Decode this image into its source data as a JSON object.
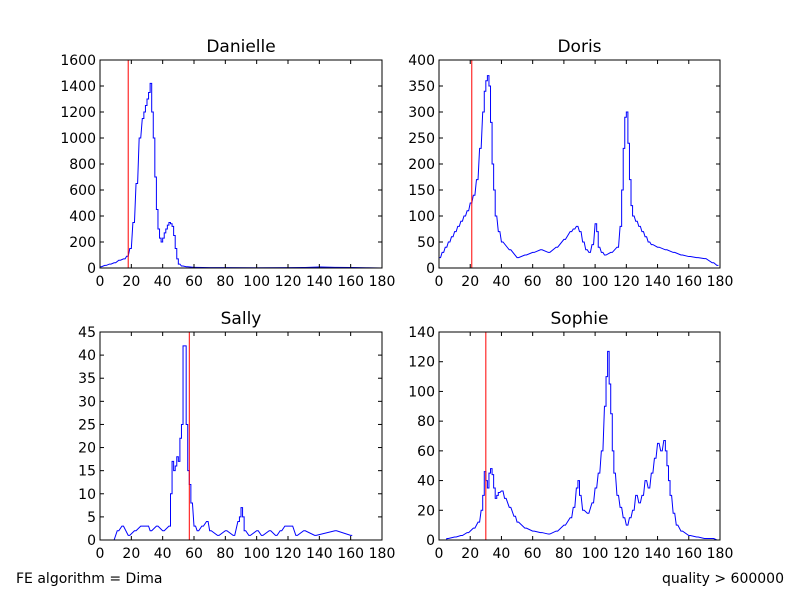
{
  "footer": {
    "left": "FE algorithm = Dima",
    "right": "quality > 600000"
  },
  "colors": {
    "series": "#0000ff",
    "marker": "#ff0000",
    "axes": "#000000"
  },
  "chart_data": [
    {
      "type": "histogram",
      "title": "Danielle",
      "xlim": [
        0,
        180
      ],
      "ylim": [
        0,
        1600
      ],
      "xticks": [
        0,
        20,
        40,
        60,
        80,
        100,
        120,
        140,
        160,
        180
      ],
      "yticks": [
        0,
        200,
        400,
        600,
        800,
        1000,
        1200,
        1400,
        1600
      ],
      "bin_width": 1,
      "threshold_x": 18,
      "series": [
        {
          "x": [
            0,
            3,
            6,
            9,
            12,
            15,
            17,
            19,
            21,
            23,
            25,
            27,
            28,
            29,
            30,
            31,
            32,
            33,
            34,
            35,
            36,
            37,
            38,
            39,
            40,
            41,
            42,
            43,
            44,
            45,
            46,
            47,
            48,
            49,
            50,
            52,
            55,
            60,
            70,
            80,
            100,
            120,
            130,
            140,
            150,
            160,
            170,
            180
          ],
          "values": [
            10,
            20,
            30,
            40,
            60,
            70,
            90,
            150,
            350,
            650,
            1000,
            1150,
            1200,
            1250,
            1300,
            1350,
            1420,
            1200,
            1000,
            700,
            450,
            300,
            230,
            200,
            230,
            270,
            300,
            330,
            350,
            340,
            320,
            250,
            150,
            70,
            30,
            15,
            10,
            5,
            3,
            3,
            2,
            3,
            4,
            8,
            5,
            4,
            2,
            0
          ]
        }
      ]
    },
    {
      "type": "histogram",
      "title": "Doris",
      "xlim": [
        0,
        180
      ],
      "ylim": [
        0,
        400
      ],
      "xticks": [
        0,
        20,
        40,
        60,
        80,
        100,
        120,
        140,
        160,
        180
      ],
      "yticks": [
        0,
        50,
        100,
        150,
        200,
        250,
        300,
        350,
        400
      ],
      "bin_width": 1,
      "threshold_x": 21,
      "series": [
        {
          "x": [
            0,
            2,
            4,
            6,
            8,
            10,
            12,
            14,
            16,
            18,
            20,
            22,
            24,
            26,
            28,
            29,
            30,
            31,
            32,
            33,
            34,
            35,
            36,
            38,
            40,
            45,
            50,
            55,
            60,
            65,
            70,
            75,
            80,
            84,
            86,
            88,
            90,
            92,
            94,
            96,
            98,
            100,
            101,
            102,
            104,
            106,
            110,
            114,
            116,
            117,
            118,
            119,
            120,
            121,
            122,
            123,
            124,
            126,
            128,
            130,
            132,
            134,
            136,
            140,
            145,
            150,
            155,
            160,
            165,
            170,
            175,
            178
          ],
          "values": [
            20,
            30,
            40,
            50,
            60,
            70,
            80,
            90,
            100,
            110,
            125,
            140,
            170,
            230,
            300,
            340,
            360,
            370,
            350,
            280,
            200,
            150,
            100,
            70,
            50,
            35,
            20,
            25,
            30,
            35,
            30,
            40,
            55,
            70,
            75,
            80,
            70,
            50,
            35,
            30,
            45,
            85,
            70,
            40,
            30,
            25,
            30,
            40,
            80,
            150,
            230,
            290,
            300,
            240,
            170,
            120,
            100,
            90,
            80,
            70,
            60,
            50,
            45,
            40,
            35,
            30,
            25,
            22,
            20,
            18,
            10,
            5
          ]
        }
      ]
    },
    {
      "type": "histogram",
      "title": "Sally",
      "xlim": [
        0,
        180
      ],
      "ylim": [
        0,
        45
      ],
      "xticks": [
        0,
        20,
        40,
        60,
        80,
        100,
        120,
        140,
        160,
        180
      ],
      "yticks": [
        0,
        5,
        10,
        15,
        20,
        25,
        30,
        35,
        40,
        45
      ],
      "bin_width": 1,
      "threshold_x": 57,
      "series": [
        {
          "x": [
            8,
            11,
            14,
            18,
            22,
            26,
            30,
            32,
            36,
            40,
            44,
            45,
            46,
            47,
            48,
            49,
            50,
            51,
            52,
            53,
            54,
            55,
            56,
            57,
            58,
            60,
            62,
            65,
            68,
            70,
            75,
            80,
            85,
            88,
            89,
            90,
            91,
            92,
            95,
            100,
            103,
            108,
            112,
            115,
            118,
            122,
            125,
            130,
            137,
            150,
            160
          ],
          "values": [
            0,
            2,
            3,
            1,
            2,
            3,
            3,
            2,
            3,
            2,
            3,
            10,
            17,
            15,
            16,
            18,
            17,
            22,
            25,
            42,
            42,
            25,
            15,
            12,
            8,
            3,
            2,
            3,
            4,
            2,
            1,
            2,
            1,
            4,
            5,
            7,
            5,
            2,
            1,
            2,
            1,
            2,
            1,
            2,
            3,
            3,
            1,
            2,
            1,
            2,
            1
          ]
        }
      ]
    },
    {
      "type": "histogram",
      "title": "Sophie",
      "xlim": [
        0,
        180
      ],
      "ylim": [
        0,
        140
      ],
      "xticks": [
        0,
        20,
        40,
        60,
        80,
        100,
        120,
        140,
        160,
        180
      ],
      "yticks": [
        0,
        20,
        40,
        60,
        80,
        100,
        120,
        140
      ],
      "bin_width": 1,
      "threshold_x": 30,
      "series": [
        {
          "x": [
            5,
            10,
            14,
            18,
            22,
            25,
            27,
            28,
            29,
            30,
            31,
            32,
            33,
            34,
            35,
            36,
            37,
            38,
            40,
            42,
            45,
            48,
            50,
            55,
            60,
            65,
            70,
            75,
            80,
            84,
            86,
            88,
            89,
            90,
            92,
            95,
            98,
            100,
            102,
            104,
            106,
            107,
            108,
            109,
            110,
            111,
            112,
            114,
            116,
            118,
            120,
            122,
            124,
            126,
            128,
            130,
            132,
            134,
            136,
            138,
            140,
            142,
            144,
            145,
            146,
            147,
            148,
            150,
            152,
            155,
            160,
            165,
            170,
            175,
            178
          ],
          "values": [
            1,
            2,
            3,
            5,
            8,
            12,
            20,
            30,
            46,
            40,
            35,
            45,
            48,
            44,
            35,
            28,
            30,
            32,
            33,
            28,
            22,
            16,
            12,
            8,
            6,
            5,
            4,
            6,
            10,
            15,
            22,
            35,
            40,
            30,
            20,
            18,
            25,
            35,
            45,
            60,
            90,
            110,
            127,
            105,
            85,
            60,
            45,
            30,
            22,
            15,
            10,
            15,
            20,
            30,
            25,
            30,
            40,
            35,
            45,
            55,
            65,
            60,
            67,
            60,
            50,
            40,
            30,
            18,
            10,
            6,
            3,
            2,
            1,
            1,
            0
          ]
        }
      ]
    }
  ]
}
